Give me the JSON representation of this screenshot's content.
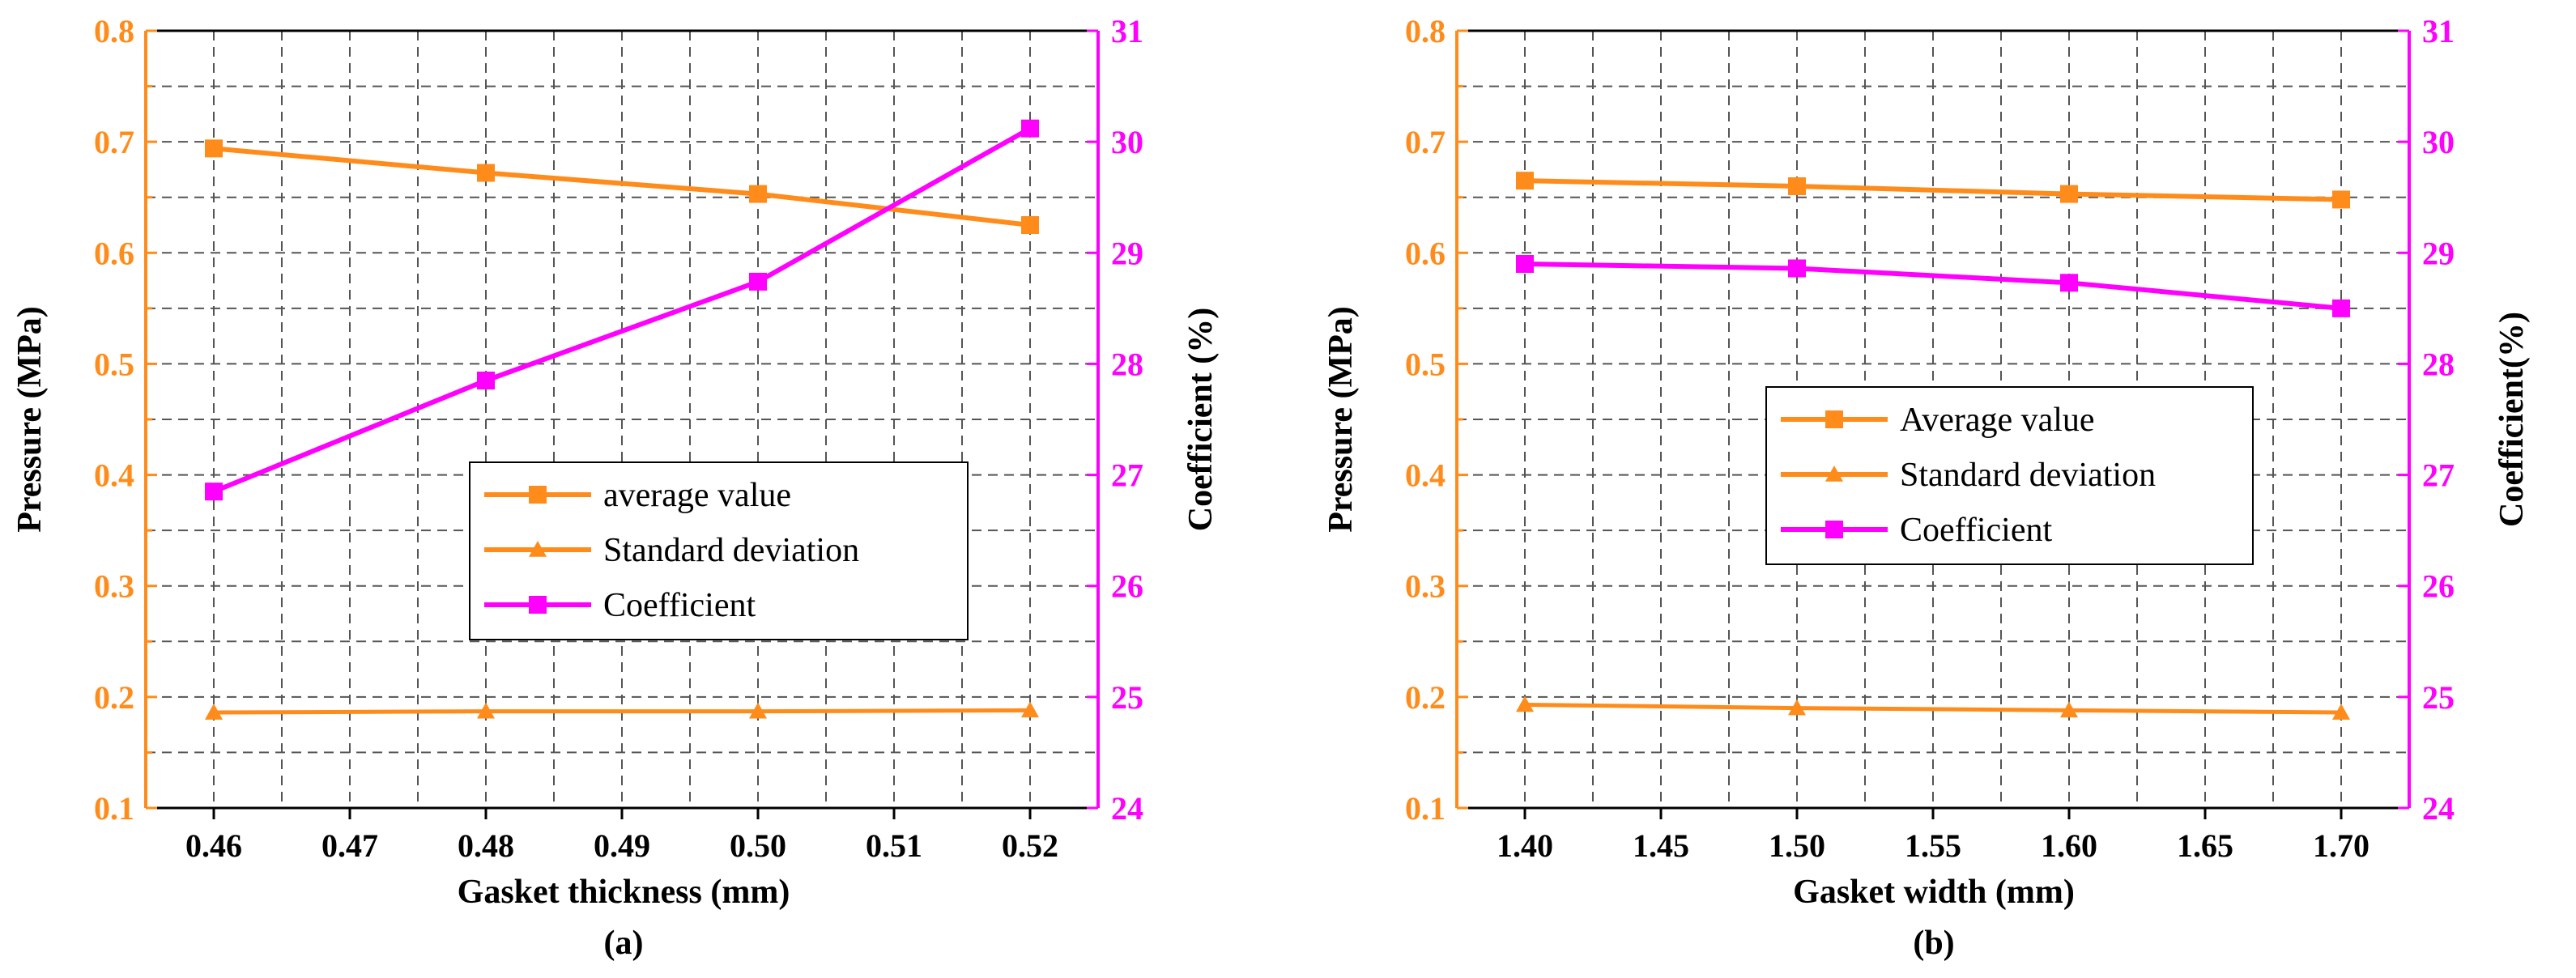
{
  "colors": {
    "average": "#FF8C1A",
    "std": "#FF8C1A",
    "coefficient": "#FF00FF",
    "left_axis": "#FF8C1A",
    "right_axis": "#FF00FF",
    "grid": "#555555"
  },
  "chart_data": [
    {
      "type": "line",
      "panel_label": "(a)",
      "xlabel": "Gasket thickness (mm)",
      "ylabel": "Pressure (MPa)",
      "y2label": "Coefficient (%)",
      "x": [
        0.46,
        0.48,
        0.5,
        0.52
      ],
      "x_ticks": [
        "0.46",
        "0.47",
        "0.48",
        "0.49",
        "0.50",
        "0.51",
        "0.52"
      ],
      "xlim": [
        0.455,
        0.525
      ],
      "ylim": [
        0.1,
        0.8
      ],
      "y_ticks": [
        "0.1",
        "0.2",
        "0.3",
        "0.4",
        "0.5",
        "0.6",
        "0.7",
        "0.8"
      ],
      "y2lim": [
        24,
        31
      ],
      "y2_ticks": [
        "24",
        "25",
        "26",
        "27",
        "28",
        "29",
        "30",
        "31"
      ],
      "grid": true,
      "legend_position": "center",
      "series": [
        {
          "name": "average value",
          "axis": "left",
          "marker": "square",
          "values": [
            0.694,
            0.672,
            0.653,
            0.625
          ]
        },
        {
          "name": "Standard deviation",
          "axis": "left",
          "marker": "triangle",
          "values": [
            0.186,
            0.187,
            0.187,
            0.188
          ]
        },
        {
          "name": "Coefficient",
          "axis": "right",
          "marker": "square",
          "values": [
            26.85,
            27.85,
            28.74,
            30.12
          ]
        }
      ]
    },
    {
      "type": "line",
      "panel_label": "(b)",
      "xlabel": "Gasket width (mm)",
      "ylabel": "Pressure (MPa)",
      "y2label": "Coefficient(%)",
      "x": [
        1.4,
        1.5,
        1.6,
        1.7
      ],
      "x_ticks": [
        "1.40",
        "1.45",
        "1.50",
        "1.55",
        "1.60",
        "1.65",
        "1.70"
      ],
      "xlim": [
        1.375,
        1.725
      ],
      "ylim": [
        0.1,
        0.8
      ],
      "y_ticks": [
        "0.1",
        "0.2",
        "0.3",
        "0.4",
        "0.5",
        "0.6",
        "0.7",
        "0.8"
      ],
      "y2lim": [
        24,
        31
      ],
      "y2_ticks": [
        "24",
        "25",
        "26",
        "27",
        "28",
        "29",
        "30",
        "31"
      ],
      "grid": true,
      "legend_position": "center",
      "series": [
        {
          "name": "Average value",
          "axis": "left",
          "marker": "square",
          "values": [
            0.665,
            0.66,
            0.653,
            0.648
          ]
        },
        {
          "name": "Standard deviation",
          "axis": "left",
          "marker": "triangle",
          "values": [
            0.193,
            0.19,
            0.188,
            0.186
          ]
        },
        {
          "name": "Coefficient",
          "axis": "right",
          "marker": "square",
          "values": [
            28.9,
            28.86,
            28.73,
            28.5
          ]
        }
      ]
    }
  ]
}
